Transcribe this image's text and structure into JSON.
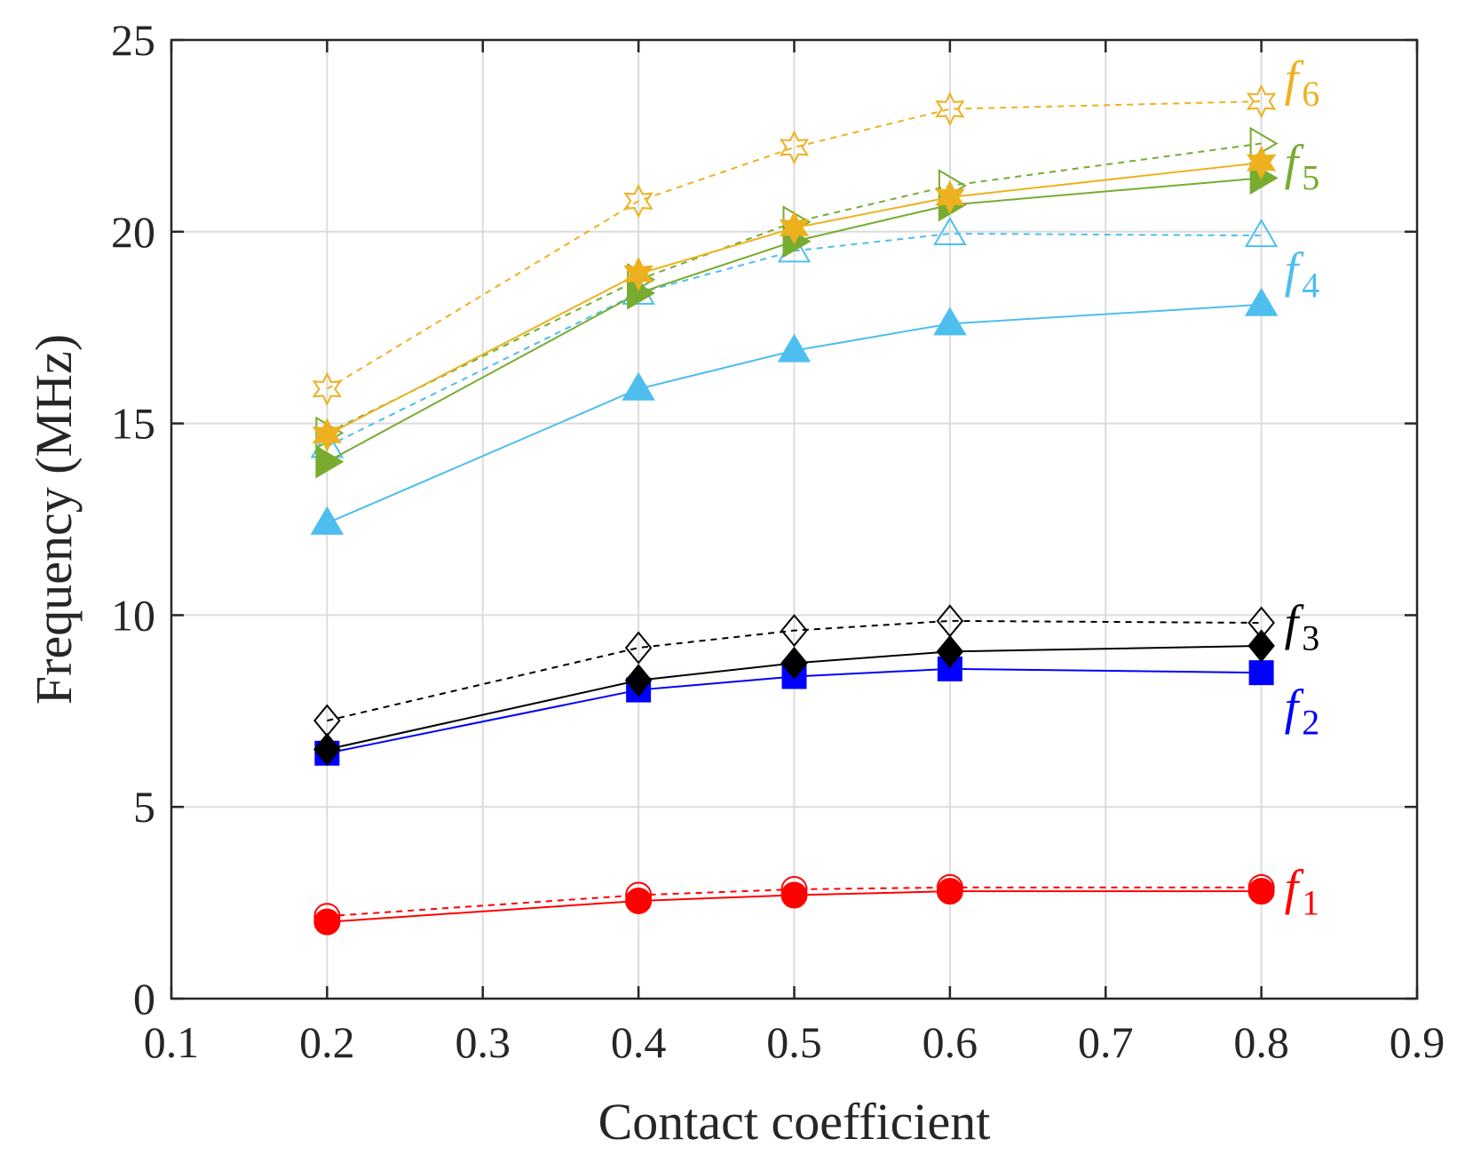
{
  "chart_data": {
    "type": "line",
    "title": "",
    "xlabel": "Contact coefficient",
    "ylabel": "Frequency (MHz)",
    "xlim": [
      0.1,
      0.9
    ],
    "ylim": [
      0,
      25
    ],
    "xticks": [
      "0.1",
      "0.2",
      "0.3",
      "0.4",
      "0.5",
      "0.6",
      "0.7",
      "0.8",
      "0.9"
    ],
    "yticks": [
      "0",
      "5",
      "10",
      "15",
      "20",
      "25"
    ],
    "grid": true,
    "x": [
      0.2,
      0.4,
      0.5,
      0.6,
      0.8
    ],
    "series": [
      {
        "name": "f1",
        "label": "f",
        "sub": "1",
        "color": "#ff0000",
        "marker": "circle",
        "filled": true,
        "dashed": false,
        "values": [
          2.0,
          2.55,
          2.7,
          2.8,
          2.8
        ]
      },
      {
        "name": "f1-dashed",
        "label": "",
        "sub": "",
        "color": "#ff0000",
        "marker": "circle",
        "filled": false,
        "dashed": true,
        "values": [
          2.15,
          2.7,
          2.85,
          2.9,
          2.9
        ]
      },
      {
        "name": "f2",
        "label": "f",
        "sub": "2",
        "color": "#0000ff",
        "marker": "square",
        "filled": true,
        "dashed": false,
        "values": [
          6.4,
          8.05,
          8.4,
          8.6,
          8.5
        ]
      },
      {
        "name": "f3",
        "label": "f",
        "sub": "3",
        "color": "#000000",
        "marker": "diamond",
        "filled": true,
        "dashed": false,
        "values": [
          6.5,
          8.3,
          8.75,
          9.05,
          9.2
        ]
      },
      {
        "name": "f3-dashed",
        "label": "",
        "sub": "",
        "color": "#000000",
        "marker": "diamond",
        "filled": false,
        "dashed": true,
        "values": [
          7.25,
          9.15,
          9.6,
          9.85,
          9.8
        ]
      },
      {
        "name": "f4",
        "label": "f",
        "sub": "4",
        "color": "#4dbeee",
        "marker": "triangle-up",
        "filled": true,
        "dashed": false,
        "values": [
          12.4,
          15.9,
          16.9,
          17.6,
          18.1
        ]
      },
      {
        "name": "f4-dashed",
        "label": "",
        "sub": "",
        "color": "#4dbeee",
        "marker": "triangle-up",
        "filled": false,
        "dashed": true,
        "values": [
          14.4,
          18.4,
          19.5,
          19.95,
          19.9
        ]
      },
      {
        "name": "f5",
        "label": "f",
        "sub": "5",
        "color": "#77ac30",
        "marker": "triangle-right",
        "filled": true,
        "dashed": false,
        "values": [
          14.0,
          18.4,
          19.75,
          20.7,
          21.4
        ]
      },
      {
        "name": "f5-dashed",
        "label": "",
        "sub": "",
        "color": "#77ac30",
        "marker": "triangle-right",
        "filled": false,
        "dashed": true,
        "values": [
          14.75,
          18.75,
          20.25,
          21.2,
          22.3
        ]
      },
      {
        "name": "f6",
        "label": "f",
        "sub": "6",
        "color": "#edb120",
        "marker": "hexagram",
        "filled": true,
        "dashed": false,
        "values": [
          14.7,
          18.9,
          20.1,
          20.9,
          21.8
        ]
      },
      {
        "name": "f6-dashed",
        "label": "",
        "sub": "",
        "color": "#edb120",
        "marker": "hexagram",
        "filled": false,
        "dashed": true,
        "values": [
          15.9,
          20.8,
          22.2,
          23.2,
          23.4
        ]
      }
    ]
  }
}
